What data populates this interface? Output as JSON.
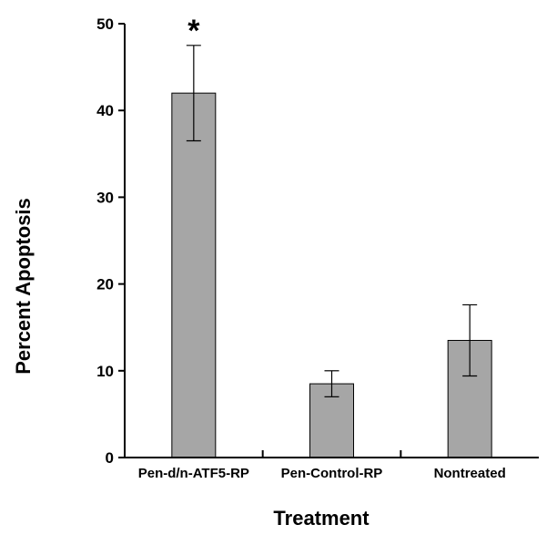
{
  "chart_data": {
    "type": "bar",
    "title": "",
    "xlabel": "Treatment",
    "ylabel": "Percent Apoptosis",
    "categories": [
      "Pen-d/n-ATF5-RP",
      "Pen-Control-RP",
      "Nontreated"
    ],
    "values": [
      42,
      8.5,
      13.5
    ],
    "error_bars": [
      {
        "low": 36.5,
        "high": 47.5
      },
      {
        "low": 7.0,
        "high": 10.0
      },
      {
        "low": 9.4,
        "high": 17.6
      }
    ],
    "ylim": [
      0,
      50
    ],
    "yticks": [
      0,
      10,
      20,
      30,
      40,
      50
    ],
    "grid": false,
    "legend": "none",
    "bar_color": "#a6a6a6",
    "annotations": [
      {
        "category": "Pen-d/n-ATF5-RP",
        "text": "*"
      }
    ]
  }
}
